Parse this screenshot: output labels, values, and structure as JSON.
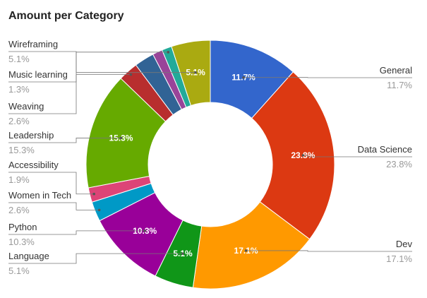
{
  "chart_data": {
    "type": "donut",
    "title": "Amount per Category",
    "series": [
      {
        "name": "General",
        "value": 11.7,
        "label": "11.7%",
        "color": "#3366cc",
        "side": "right",
        "show_inside": true
      },
      {
        "name": "Data Science",
        "value": 23.8,
        "label": "23.8%",
        "color": "#dc3912",
        "side": "right",
        "show_inside": true
      },
      {
        "name": "Dev",
        "value": 17.1,
        "label": "17.1%",
        "color": "#ff9900",
        "side": "right",
        "show_inside": true
      },
      {
        "name": "Language",
        "value": 5.1,
        "label": "5.1%",
        "color": "#109618",
        "side": "left",
        "show_inside": true
      },
      {
        "name": "Python",
        "value": 10.3,
        "label": "10.3%",
        "color": "#990099",
        "side": "left",
        "show_inside": true
      },
      {
        "name": "Women in Tech",
        "value": 2.6,
        "label": "2.6%",
        "color": "#0099c6",
        "side": "left",
        "show_inside": false
      },
      {
        "name": "Accessibility",
        "value": 1.9,
        "label": "1.9%",
        "color": "#dd4477",
        "side": "left",
        "show_inside": false
      },
      {
        "name": "Leadership",
        "value": 15.3,
        "label": "15.3%",
        "color": "#66aa00",
        "side": "left",
        "show_inside": true
      },
      {
        "name": "Weaving",
        "value": 2.6,
        "label": "2.6%",
        "color": "#b82e2e",
        "side": "left",
        "show_inside": false
      },
      {
        "name": "",
        "value": 2.6,
        "label": "",
        "color": "#316395",
        "side": "none",
        "show_inside": false
      },
      {
        "name": "",
        "value": 1.3,
        "label": "",
        "color": "#994499",
        "side": "none",
        "show_inside": false
      },
      {
        "name": "Music learning",
        "value": 1.3,
        "label": "1.3%",
        "color": "#22aa99",
        "side": "left",
        "show_inside": false
      },
      {
        "name": "Wireframing",
        "value": 5.1,
        "label": "5.1%",
        "color": "#aaaa11",
        "side": "left",
        "show_inside": true
      }
    ],
    "legend": "callouts"
  }
}
